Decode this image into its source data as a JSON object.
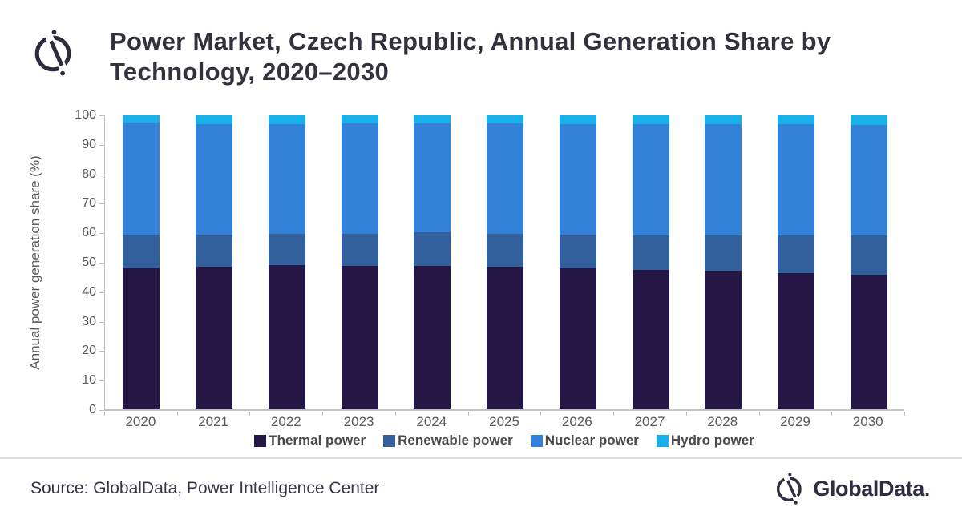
{
  "header": {
    "title_line1": "Power Market, Czech Republic, Annual Generation Share by",
    "title_line2": "Technology, 2020–2030",
    "logo_icon": "globaldata-logo-mark"
  },
  "chart_data": {
    "type": "bar",
    "stacked": true,
    "title": "Power Market, Czech Republic, Annual Generation Share by Technology, 2020–2030",
    "categories": [
      "2020",
      "2021",
      "2022",
      "2023",
      "2024",
      "2025",
      "2026",
      "2027",
      "2028",
      "2029",
      "2030"
    ],
    "series": [
      {
        "name": "Thermal power",
        "color": "#251745",
        "values": [
          48.0,
          48.6,
          49.3,
          48.8,
          49.0,
          48.7,
          48.1,
          47.6,
          47.3,
          46.5,
          45.8
        ]
      },
      {
        "name": "Renewable power",
        "color": "#32609c",
        "values": [
          11.3,
          11.0,
          10.6,
          11.0,
          11.2,
          11.0,
          11.3,
          11.7,
          12.0,
          12.8,
          13.4
        ]
      },
      {
        "name": "Nuclear power",
        "color": "#3381d8",
        "values": [
          38.2,
          37.5,
          37.2,
          37.5,
          37.2,
          37.6,
          37.7,
          37.7,
          37.7,
          37.6,
          37.6
        ]
      },
      {
        "name": "Hydro power",
        "color": "#18b0e8",
        "values": [
          2.5,
          2.9,
          2.9,
          2.7,
          2.6,
          2.7,
          2.9,
          3.0,
          3.0,
          3.1,
          3.2
        ]
      }
    ],
    "xlabel": "",
    "ylabel": "Annual power generation share (%)",
    "ylim": [
      0,
      100
    ],
    "yticks": [
      0,
      10,
      20,
      30,
      40,
      50,
      60,
      70,
      80,
      90,
      100
    ],
    "grid": false,
    "legend_position": "bottom",
    "axis_color": "#bfbfbf",
    "tick_label_color": "#595959",
    "legend_text_color": "#4a4a4a"
  },
  "footer": {
    "source": "Source: GlobalData, Power Intelligence Center",
    "logo_text": "GlobalData.",
    "logo_icon": "globaldata-logo-mark"
  }
}
